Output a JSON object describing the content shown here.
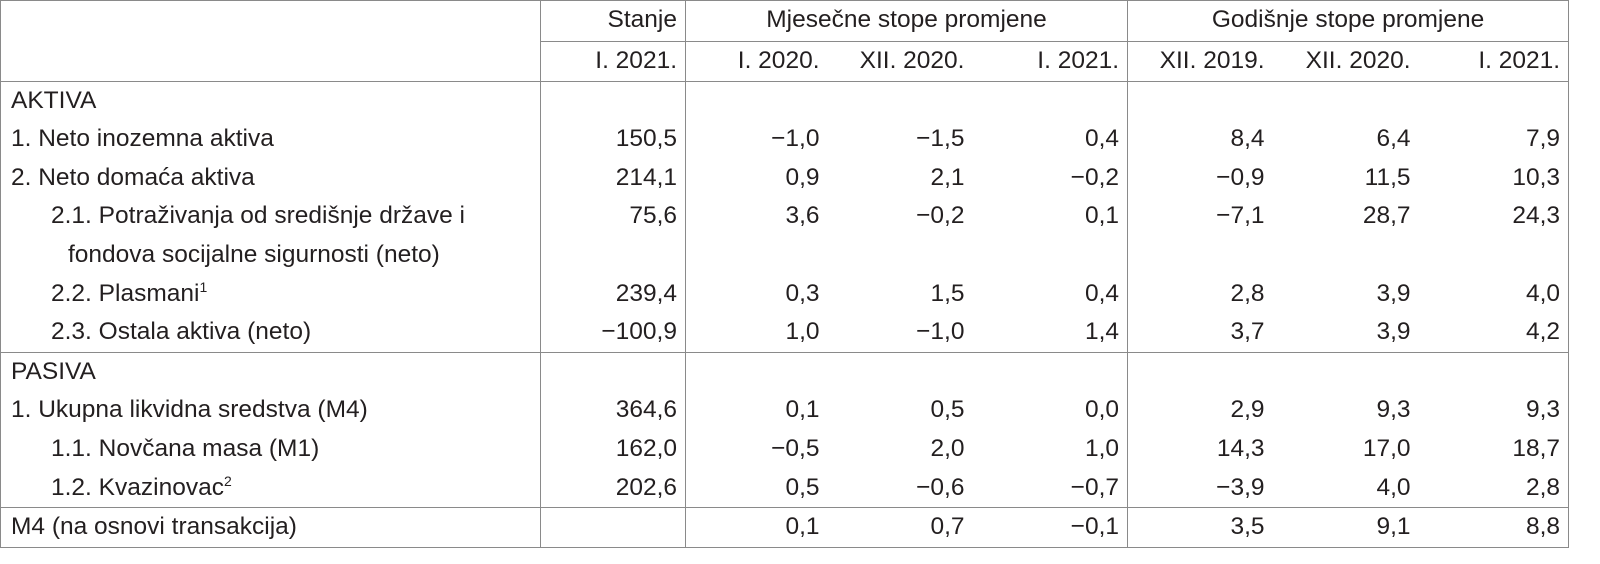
{
  "table": {
    "header": {
      "groups": [
        "Stanje",
        "Mjesečne stope promjene",
        "Godišnje stope promjene"
      ],
      "periods": [
        "I. 2021.",
        "I. 2020.",
        "XII. 2020.",
        "I. 2021.",
        "XII. 2019.",
        "XII. 2020.",
        "I. 2021."
      ]
    },
    "sections": [
      {
        "title": "AKTIVA",
        "rows": [
          {
            "label": [
              "1. Neto inozemna aktiva"
            ],
            "values": [
              "150,5",
              "−1,0",
              "−1,5",
              "0,4",
              "8,4",
              "6,4",
              "7,9"
            ]
          },
          {
            "label": [
              "2. Neto domaća aktiva"
            ],
            "values": [
              "214,1",
              "0,9",
              "2,1",
              "−0,2",
              "−0,9",
              "11,5",
              "10,3"
            ]
          },
          {
            "label": [
              "2.1. Potraživanja od središnje države i",
              "fondova socijalne sigurnosti (neto)"
            ],
            "values": [
              "75,6",
              "3,6",
              "−0,2",
              "0,1",
              "−7,1",
              "28,7",
              "24,3"
            ]
          },
          {
            "label": [
              "2.2. Plasmani"
            ],
            "note": "1",
            "values": [
              "239,4",
              "0,3",
              "1,5",
              "0,4",
              "2,8",
              "3,9",
              "4,0"
            ]
          },
          {
            "label": [
              "2.3. Ostala aktiva (neto)"
            ],
            "values": [
              "−100,9",
              "1,0",
              "−1,0",
              "1,4",
              "3,7",
              "3,9",
              "4,2"
            ]
          }
        ]
      },
      {
        "title": "PASIVA",
        "rows": [
          {
            "label": [
              "1. Ukupna likvidna sredstva (M4)"
            ],
            "values": [
              "364,6",
              "0,1",
              "0,5",
              "0,0",
              "2,9",
              "9,3",
              "9,3"
            ]
          },
          {
            "label": [
              "1.1. Novčana masa (M1)"
            ],
            "values": [
              "162,0",
              "−0,5",
              "2,0",
              "1,0",
              "14,3",
              "17,0",
              "18,7"
            ]
          },
          {
            "label": [
              "1.2. Kvazinovac"
            ],
            "note": "2",
            "values": [
              "202,6",
              "0,5",
              "−0,6",
              "−0,7",
              "−3,9",
              "4,0",
              "2,8"
            ]
          }
        ]
      }
    ],
    "footer": {
      "label": "M4 (na osnovi transakcija)",
      "values": [
        "0,1",
        "0,7",
        "−0,1",
        "3,5",
        "9,1",
        "8,8"
      ]
    }
  }
}
